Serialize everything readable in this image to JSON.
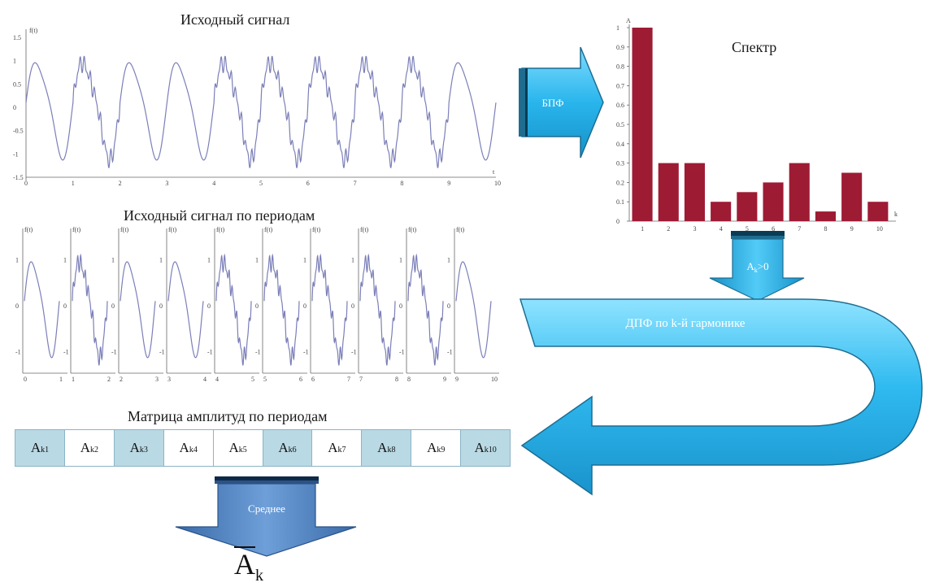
{
  "titles": {
    "original_signal": "Исходный сигнал",
    "signal_by_periods": "Исходный сигнал по периодам",
    "spectrum": "Спектр",
    "amplitude_matrix": "Матрица амплитуд по периодам"
  },
  "arrows": {
    "fft": "БПФ",
    "select_harmonic": "A",
    "select_harmonic_sub": "k",
    "select_harmonic_rest": ">0",
    "dft": "ДПФ по k-й гармонике",
    "mean": "Среднее"
  },
  "result": {
    "symbol": "A",
    "sub": "k"
  },
  "original_signal_axes": {
    "y_label": "f(t)",
    "x_label": "t",
    "x_ticks": [
      "0",
      "1",
      "2",
      "3",
      "4",
      "5",
      "6",
      "7",
      "8",
      "9",
      "10"
    ],
    "y_ticks": [
      "1.5",
      "1",
      "0.5",
      "0",
      "-0.5",
      "-1",
      "-1.5"
    ]
  },
  "period_panels": [
    {
      "y_label": "f(t)",
      "x_ticks": [
        "0",
        "1"
      ]
    },
    {
      "y_label": "f(t)",
      "x_ticks": [
        "1",
        "2"
      ]
    },
    {
      "y_label": "f(t)",
      "x_ticks": [
        "2",
        "3"
      ]
    },
    {
      "y_label": "f(t)",
      "x_ticks": [
        "3",
        "4"
      ]
    },
    {
      "y_label": "f(t)",
      "x_ticks": [
        "4",
        "5"
      ]
    },
    {
      "y_label": "f(t)",
      "x_ticks": [
        "5",
        "6"
      ]
    },
    {
      "y_label": "f(t)",
      "x_ticks": [
        "6",
        "7"
      ]
    },
    {
      "y_label": "f(t)",
      "x_ticks": [
        "7",
        "8"
      ]
    },
    {
      "y_label": "f(t)",
      "x_ticks": [
        "8",
        "9"
      ]
    },
    {
      "y_label": "f(t)",
      "x_ticks": [
        "9",
        "10"
      ]
    }
  ],
  "period_y_ticks": [
    "1",
    "0",
    "-1"
  ],
  "chart_data": {
    "type": "bar",
    "title": "Спектр",
    "xlabel": "k",
    "ylabel": "A",
    "categories": [
      "1",
      "2",
      "3",
      "4",
      "5",
      "6",
      "7",
      "8",
      "9",
      "10"
    ],
    "values": [
      1.0,
      0.3,
      0.3,
      0.1,
      0.15,
      0.2,
      0.3,
      0.05,
      0.25,
      0.1
    ],
    "y_ticks": [
      "1",
      "0.9",
      "0.8",
      "0.7",
      "0.6",
      "0.5",
      "0.4",
      "0.3",
      "0.2",
      "0.1",
      "0"
    ],
    "ylim": [
      0,
      1
    ],
    "grid": false,
    "bar_color": "#9e1b34"
  },
  "matrix": {
    "cells": [
      {
        "base": "A",
        "sub": "k1",
        "shaded": true
      },
      {
        "base": "A",
        "sub": "k2",
        "shaded": false
      },
      {
        "base": "A",
        "sub": "k3",
        "shaded": true
      },
      {
        "base": "A",
        "sub": "k4",
        "shaded": false
      },
      {
        "base": "A",
        "sub": "k5",
        "shaded": false
      },
      {
        "base": "A",
        "sub": "k6",
        "shaded": true
      },
      {
        "base": "A",
        "sub": "k7",
        "shaded": false
      },
      {
        "base": "A",
        "sub": "k8",
        "shaded": true
      },
      {
        "base": "A",
        "sub": "k9",
        "shaded": false
      },
      {
        "base": "A",
        "sub": "k10",
        "shaded": true
      }
    ]
  },
  "colors": {
    "arrow_fill": "#29b5ec",
    "arrow_dark": "#1e6d91",
    "mean_fill": "#4f7fbf",
    "bar": "#9e1b34",
    "signal": "#7b7fb8",
    "cell_shade": "#b9d9e4"
  }
}
